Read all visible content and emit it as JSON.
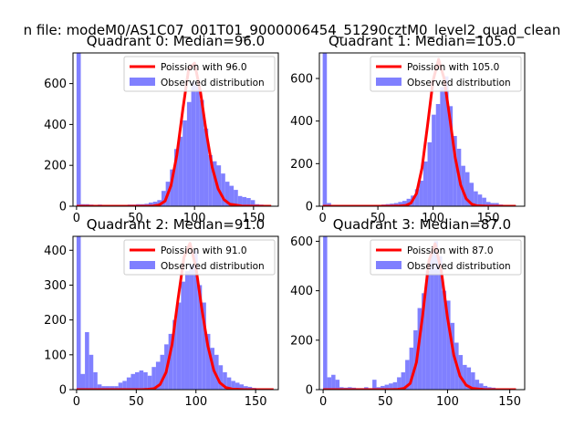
{
  "figure": {
    "suptitle": "n file: modeM0/AS1C07_001T01_9000006454_51290cztM0_level2_quad_clean"
  },
  "colors": {
    "hist": "#8080ff",
    "poisson": "#ff0000",
    "text": "#000000",
    "legend_border": "#cccccc"
  },
  "chart_data": [
    {
      "type": "bar",
      "title": "Quadrant 0: Median=96.0",
      "xlabel": "",
      "ylabel": "",
      "xlim": [
        -3,
        171
      ],
      "ylim": [
        0,
        750
      ],
      "xticks": [
        0,
        50,
        100,
        150
      ],
      "yticks": [
        0,
        200,
        400,
        600
      ],
      "legend": "top-right",
      "series": [
        {
          "name": "Poission with 96.0",
          "kind": "line",
          "mean": 96.0,
          "x": [
            0,
            20,
            40,
            50,
            60,
            65,
            70,
            75,
            80,
            85,
            90,
            95,
            100,
            105,
            110,
            115,
            120,
            125,
            130,
            140,
            150,
            160,
            165
          ],
          "y": [
            0,
            0,
            0,
            0,
            0,
            1,
            6,
            25,
            100,
            250,
            470,
            670,
            700,
            560,
            360,
            190,
            85,
            32,
            10,
            1,
            0,
            0,
            0
          ]
        },
        {
          "name": "Observed distribution",
          "kind": "histogram",
          "bin_width": 3.6,
          "x": [
            0,
            3.6,
            7.2,
            10.8,
            14.4,
            18,
            21.6,
            25.2,
            28.8,
            32.4,
            36,
            39.6,
            43.2,
            46.8,
            50.4,
            54,
            57.6,
            61.2,
            64.8,
            68.4,
            72,
            75.6,
            79.2,
            82.8,
            86.4,
            90,
            93.6,
            97.2,
            100.8,
            104.4,
            108,
            111.6,
            115.2,
            118.8,
            122.4,
            126,
            129.6,
            133.2,
            136.8,
            140.4,
            144,
            147.6,
            151.2,
            154.8,
            158.4,
            162
          ],
          "y": [
            750,
            10,
            10,
            8,
            5,
            8,
            6,
            5,
            4,
            5,
            5,
            6,
            8,
            8,
            10,
            10,
            12,
            18,
            22,
            30,
            75,
            120,
            180,
            280,
            340,
            420,
            510,
            610,
            590,
            520,
            380,
            250,
            220,
            200,
            160,
            120,
            100,
            80,
            50,
            45,
            40,
            30,
            10,
            8,
            4,
            2
          ]
        }
      ]
    },
    {
      "type": "bar",
      "title": "Quadrant 1: Median=105.0",
      "xlabel": "",
      "ylabel": "",
      "xlim": [
        -3,
        183
      ],
      "ylim": [
        0,
        720
      ],
      "xticks": [
        0,
        50,
        100,
        150
      ],
      "yticks": [
        0,
        200,
        400,
        600
      ],
      "legend": "top-right",
      "series": [
        {
          "name": "Poission with 105.0",
          "kind": "line",
          "mean": 105.0,
          "x": [
            0,
            40,
            60,
            70,
            75,
            80,
            85,
            90,
            95,
            100,
            105,
            110,
            115,
            120,
            125,
            130,
            135,
            140,
            150,
            160,
            170,
            175
          ],
          "y": [
            0,
            0,
            0,
            1,
            3,
            15,
            60,
            180,
            380,
            590,
            690,
            600,
            420,
            230,
            100,
            35,
            10,
            2,
            0,
            0,
            0,
            0
          ]
        },
        {
          "name": "Observed distribution",
          "kind": "histogram",
          "bin_width": 3.8,
          "x": [
            0,
            3.8,
            7.6,
            11.4,
            15.2,
            19,
            22.8,
            26.6,
            30.4,
            34.2,
            38,
            41.8,
            45.6,
            49.4,
            53.2,
            57,
            60.8,
            64.6,
            68.4,
            72.2,
            76,
            79.8,
            83.6,
            87.4,
            91.2,
            95,
            98.8,
            102.6,
            106.4,
            110.2,
            114,
            117.8,
            121.6,
            125.4,
            129.2,
            133,
            136.8,
            140.6,
            144.4,
            148.2,
            152,
            155.8,
            159.6,
            163.4,
            167.2,
            171
          ],
          "y": [
            720,
            15,
            6,
            5,
            4,
            4,
            4,
            4,
            4,
            4,
            4,
            5,
            6,
            6,
            8,
            10,
            12,
            15,
            20,
            25,
            35,
            50,
            80,
            120,
            210,
            300,
            430,
            480,
            560,
            610,
            470,
            330,
            270,
            190,
            160,
            110,
            70,
            55,
            40,
            20,
            15,
            15,
            8,
            5,
            3,
            1
          ]
        }
      ]
    },
    {
      "type": "bar",
      "title": "Quadrant 2: Median=91.0",
      "xlabel": "",
      "ylabel": "",
      "xlim": [
        -3,
        169
      ],
      "ylim": [
        0,
        440
      ],
      "xticks": [
        0,
        50,
        100,
        150
      ],
      "yticks": [
        0,
        100,
        200,
        300,
        400
      ],
      "legend": "top-right",
      "series": [
        {
          "name": "Poission with 91.0",
          "kind": "line",
          "mean": 91.0,
          "x": [
            0,
            20,
            40,
            50,
            55,
            60,
            65,
            70,
            75,
            80,
            85,
            90,
            95,
            100,
            105,
            110,
            115,
            120,
            125,
            130,
            140,
            150,
            165
          ],
          "y": [
            0,
            0,
            0,
            0,
            0,
            1,
            3,
            15,
            50,
            130,
            260,
            380,
            420,
            350,
            230,
            125,
            55,
            20,
            6,
            2,
            0,
            0,
            0
          ]
        },
        {
          "name": "Observed distribution",
          "kind": "histogram",
          "bin_width": 3.5,
          "x": [
            0,
            3.5,
            7,
            10.5,
            14,
            17.5,
            21,
            24.5,
            28,
            31.5,
            35,
            38.5,
            42,
            45.5,
            49,
            52.5,
            56,
            59.5,
            63,
            66.5,
            70,
            73.5,
            77,
            80.5,
            84,
            87.5,
            91,
            94.5,
            98,
            101.5,
            105,
            108.5,
            112,
            115.5,
            119,
            122.5,
            126,
            129.5,
            133,
            136.5,
            140,
            143.5,
            147,
            150.5,
            154,
            157.5
          ],
          "y": [
            440,
            45,
            165,
            100,
            50,
            15,
            10,
            10,
            10,
            10,
            20,
            25,
            35,
            45,
            50,
            55,
            50,
            40,
            65,
            80,
            100,
            130,
            160,
            200,
            250,
            310,
            340,
            360,
            400,
            300,
            250,
            160,
            120,
            100,
            70,
            50,
            35,
            25,
            20,
            15,
            10,
            8,
            5,
            4,
            3,
            2
          ]
        }
      ]
    },
    {
      "type": "bar",
      "title": "Quadrant 3: Median=87.0",
      "xlabel": "",
      "ylabel": "",
      "xlim": [
        -3,
        162
      ],
      "ylim": [
        0,
        620
      ],
      "xticks": [
        0,
        50,
        100,
        150
      ],
      "yticks": [
        0,
        200,
        400,
        600
      ],
      "legend": "top-right",
      "series": [
        {
          "name": "Poission with 87.0",
          "kind": "line",
          "mean": 87.0,
          "x": [
            0,
            20,
            40,
            50,
            55,
            60,
            65,
            70,
            75,
            80,
            85,
            90,
            95,
            100,
            105,
            110,
            115,
            120,
            130,
            140,
            155
          ],
          "y": [
            0,
            0,
            0,
            0,
            0,
            1,
            5,
            25,
            110,
            300,
            520,
            590,
            480,
            290,
            140,
            55,
            18,
            5,
            0,
            0,
            0
          ]
        },
        {
          "name": "Observed distribution",
          "kind": "histogram",
          "bin_width": 3.3,
          "x": [
            0,
            3.3,
            6.6,
            9.9,
            13.2,
            16.5,
            19.8,
            23.1,
            26.4,
            29.7,
            33,
            36.3,
            39.6,
            42.9,
            46.2,
            49.5,
            52.8,
            56.1,
            59.4,
            62.7,
            66,
            69.3,
            72.6,
            75.9,
            79.2,
            82.5,
            85.8,
            89.1,
            92.4,
            95.7,
            99,
            102.3,
            105.6,
            108.9,
            112.2,
            115.5,
            118.8,
            122.1,
            125.4,
            128.7,
            132,
            135.3,
            138.6,
            141.9,
            145.2,
            148.5
          ],
          "y": [
            620,
            50,
            60,
            40,
            10,
            8,
            10,
            8,
            6,
            6,
            10,
            6,
            40,
            10,
            15,
            20,
            25,
            30,
            50,
            70,
            120,
            170,
            240,
            330,
            390,
            480,
            560,
            600,
            540,
            400,
            360,
            270,
            190,
            140,
            100,
            90,
            70,
            40,
            25,
            15,
            10,
            8,
            5,
            3,
            2,
            1
          ]
        }
      ]
    }
  ]
}
